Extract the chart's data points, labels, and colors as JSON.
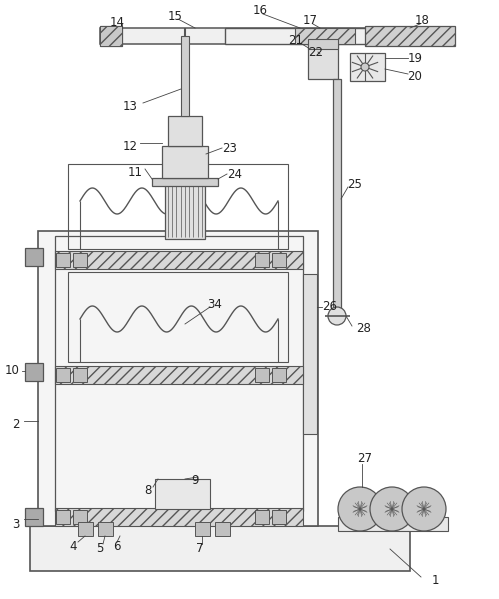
{
  "background_color": "#ffffff",
  "line_color": "#555555",
  "dark_gray": "#888888",
  "light_gray": "#e8e8e8",
  "mid_gray": "#cccccc",
  "hatch_color": "#aaaaaa"
}
